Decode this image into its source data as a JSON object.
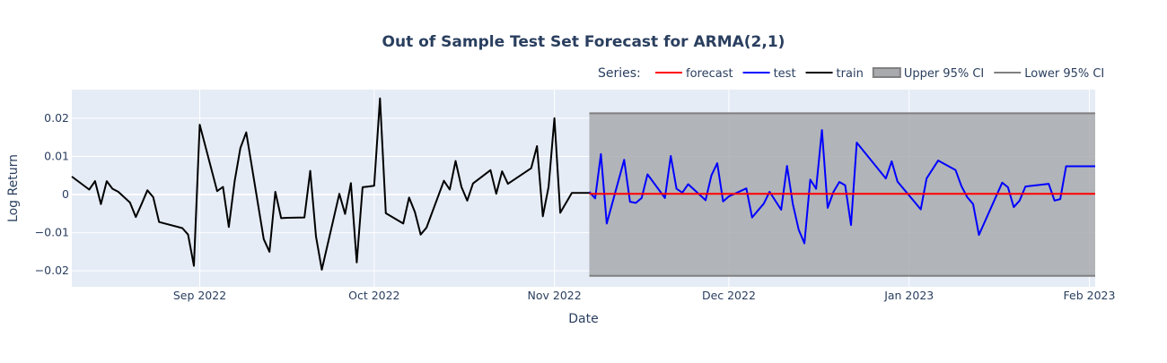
{
  "chart_data": {
    "type": "line",
    "title": "Out of Sample Test Set Forecast for ARMA(2,1)",
    "xlabel": "Date",
    "ylabel": "Log Return",
    "xlim": [
      "2022-08-10",
      "2023-02-02"
    ],
    "ylim": [
      -0.0242,
      0.0275
    ],
    "x_ticks": [
      {
        "date": "2022-09-01",
        "label": "Sep 2022"
      },
      {
        "date": "2022-10-01",
        "label": "Oct 2022"
      },
      {
        "date": "2022-11-01",
        "label": "Nov 2022"
      },
      {
        "date": "2022-12-01",
        "label": "Dec 2022"
      },
      {
        "date": "2023-01-01",
        "label": "Jan 2023"
      },
      {
        "date": "2023-02-01",
        "label": "Feb 2023"
      }
    ],
    "y_ticks": [
      {
        "value": 0.02,
        "label": "0.02"
      },
      {
        "value": 0.01,
        "label": "0.01"
      },
      {
        "value": 0,
        "label": "0"
      },
      {
        "value": -0.01,
        "label": "−0.01"
      },
      {
        "value": -0.02,
        "label": "−0.02"
      }
    ],
    "grid": true,
    "legend_title": "Series:",
    "legend_position": "top-right, horizontal",
    "series": [
      {
        "name": "train",
        "color": "#000000",
        "x": [
          "2022-08-10",
          "2022-08-13",
          "2022-08-14",
          "2022-08-15",
          "2022-08-16",
          "2022-08-17",
          "2022-08-18",
          "2022-08-20",
          "2022-08-21",
          "2022-08-22",
          "2022-08-23",
          "2022-08-24",
          "2022-08-25",
          "2022-08-29",
          "2022-08-30",
          "2022-08-31",
          "2022-09-01",
          "2022-09-04",
          "2022-09-05",
          "2022-09-06",
          "2022-09-07",
          "2022-09-08",
          "2022-09-09",
          "2022-09-12",
          "2022-09-13",
          "2022-09-14",
          "2022-09-15",
          "2022-09-16",
          "2022-09-19",
          "2022-09-20",
          "2022-09-21",
          "2022-09-22",
          "2022-09-25",
          "2022-09-26",
          "2022-09-27",
          "2022-09-28",
          "2022-09-29",
          "2022-09-30",
          "2022-10-01",
          "2022-10-02",
          "2022-10-03",
          "2022-10-06",
          "2022-10-07",
          "2022-10-08",
          "2022-10-09",
          "2022-10-10",
          "2022-10-13",
          "2022-10-14",
          "2022-10-15",
          "2022-10-16",
          "2022-10-17",
          "2022-10-18",
          "2022-10-21",
          "2022-10-22",
          "2022-10-23",
          "2022-10-24",
          "2022-10-28",
          "2022-10-29",
          "2022-10-30",
          "2022-10-31",
          "2022-11-01",
          "2022-11-02",
          "2022-11-04",
          "2022-11-05",
          "2022-11-07"
        ],
        "y": [
          0.0047,
          0.0013,
          0.0035,
          -0.0025,
          0.0035,
          0.0015,
          0.0007,
          -0.0021,
          -0.0059,
          -0.0025,
          0.0011,
          -0.0007,
          -0.0072,
          -0.0088,
          -0.0105,
          -0.0187,
          0.0183,
          0.0009,
          0.002,
          -0.0085,
          0.0035,
          0.0122,
          0.0163,
          -0.0117,
          -0.015,
          0.0007,
          -0.0062,
          -0.0061,
          -0.006,
          0.0062,
          -0.011,
          -0.0197,
          0.0002,
          -0.0051,
          0.003,
          -0.0178,
          0.0019,
          0.0021,
          0.0023,
          0.0252,
          -0.0049,
          -0.0076,
          -0.0008,
          -0.0046,
          -0.0105,
          -0.0087,
          0.0036,
          0.0013,
          0.0088,
          0.002,
          -0.0016,
          0.0029,
          0.0064,
          0.0002,
          0.0061,
          0.0028,
          0.0069,
          0.0127,
          -0.0057,
          0.002,
          0.02,
          -0.0048,
          0.0004,
          0.0004,
          0.0004
        ]
      },
      {
        "name": "test",
        "color": "#0000ff",
        "x": [
          "2022-11-07",
          "2022-11-08",
          "2022-11-09",
          "2022-11-10",
          "2022-11-13",
          "2022-11-14",
          "2022-11-15",
          "2022-11-16",
          "2022-11-17",
          "2022-11-20",
          "2022-11-21",
          "2022-11-22",
          "2022-11-23",
          "2022-11-24",
          "2022-11-27",
          "2022-11-28",
          "2022-11-29",
          "2022-11-30",
          "2022-12-01",
          "2022-12-04",
          "2022-12-05",
          "2022-12-07",
          "2022-12-08",
          "2022-12-10",
          "2022-12-11",
          "2022-12-12",
          "2022-12-13",
          "2022-12-14",
          "2022-12-15",
          "2022-12-16",
          "2022-12-17",
          "2022-12-18",
          "2022-12-19",
          "2022-12-20",
          "2022-12-21",
          "2022-12-22",
          "2022-12-23",
          "2022-12-28",
          "2022-12-29",
          "2022-12-30",
          "2023-01-03",
          "2023-01-04",
          "2023-01-06",
          "2023-01-09",
          "2023-01-10",
          "2023-01-11",
          "2023-01-12",
          "2023-01-13",
          "2023-01-17",
          "2023-01-18",
          "2023-01-19",
          "2023-01-20",
          "2023-01-21",
          "2023-01-25",
          "2023-01-26",
          "2023-01-27",
          "2023-01-28",
          "2023-01-31",
          "2023-02-01",
          "2023-02-02"
        ],
        "y": [
          0.0007,
          -0.001,
          0.0106,
          -0.0076,
          0.0091,
          -0.0019,
          -0.0022,
          -0.0009,
          0.0053,
          -0.0009,
          0.0101,
          0.0015,
          0.0005,
          0.0027,
          -0.0015,
          0.005,
          0.0082,
          -0.0018,
          -0.0005,
          0.0016,
          -0.006,
          -0.0024,
          0.0007,
          -0.004,
          0.0075,
          -0.0025,
          -0.0092,
          -0.0128,
          0.0039,
          0.0015,
          0.0169,
          -0.0035,
          0.0007,
          0.0033,
          0.0024,
          -0.008,
          0.0136,
          0.0042,
          0.0087,
          0.0034,
          -0.0039,
          0.0042,
          0.0089,
          0.0064,
          0.0022,
          -0.0007,
          -0.0025,
          -0.0106,
          0.0031,
          0.0019,
          -0.0033,
          -0.0016,
          0.0021,
          0.0028,
          -0.0016,
          -0.0012,
          0.0074,
          0.0074,
          0.0074,
          0.0074
        ]
      },
      {
        "name": "forecast",
        "color": "#ff0000",
        "x": [
          "2022-11-07",
          "2023-02-02"
        ],
        "y": [
          0.0002,
          0.0002
        ]
      },
      {
        "name": "Upper 95% CI",
        "color": "#808080",
        "x": [
          "2022-11-07",
          "2023-02-02"
        ],
        "y": [
          0.0213,
          0.0213
        ]
      },
      {
        "name": "Lower 95% CI",
        "color": "#808080",
        "x": [
          "2022-11-07",
          "2023-02-02"
        ],
        "y": [
          -0.0213,
          -0.0213
        ]
      }
    ],
    "ci_fill_color": "#a8aaae",
    "legend_entries": [
      {
        "name": "forecast",
        "color": "#ff0000",
        "kind": "line"
      },
      {
        "name": "test",
        "color": "#0000ff",
        "kind": "line"
      },
      {
        "name": "train",
        "color": "#000000",
        "kind": "line"
      },
      {
        "name": "Upper 95% CI",
        "color": "#808080",
        "kind": "band"
      },
      {
        "name": "Lower 95% CI",
        "color": "#808080",
        "kind": "line"
      }
    ]
  }
}
